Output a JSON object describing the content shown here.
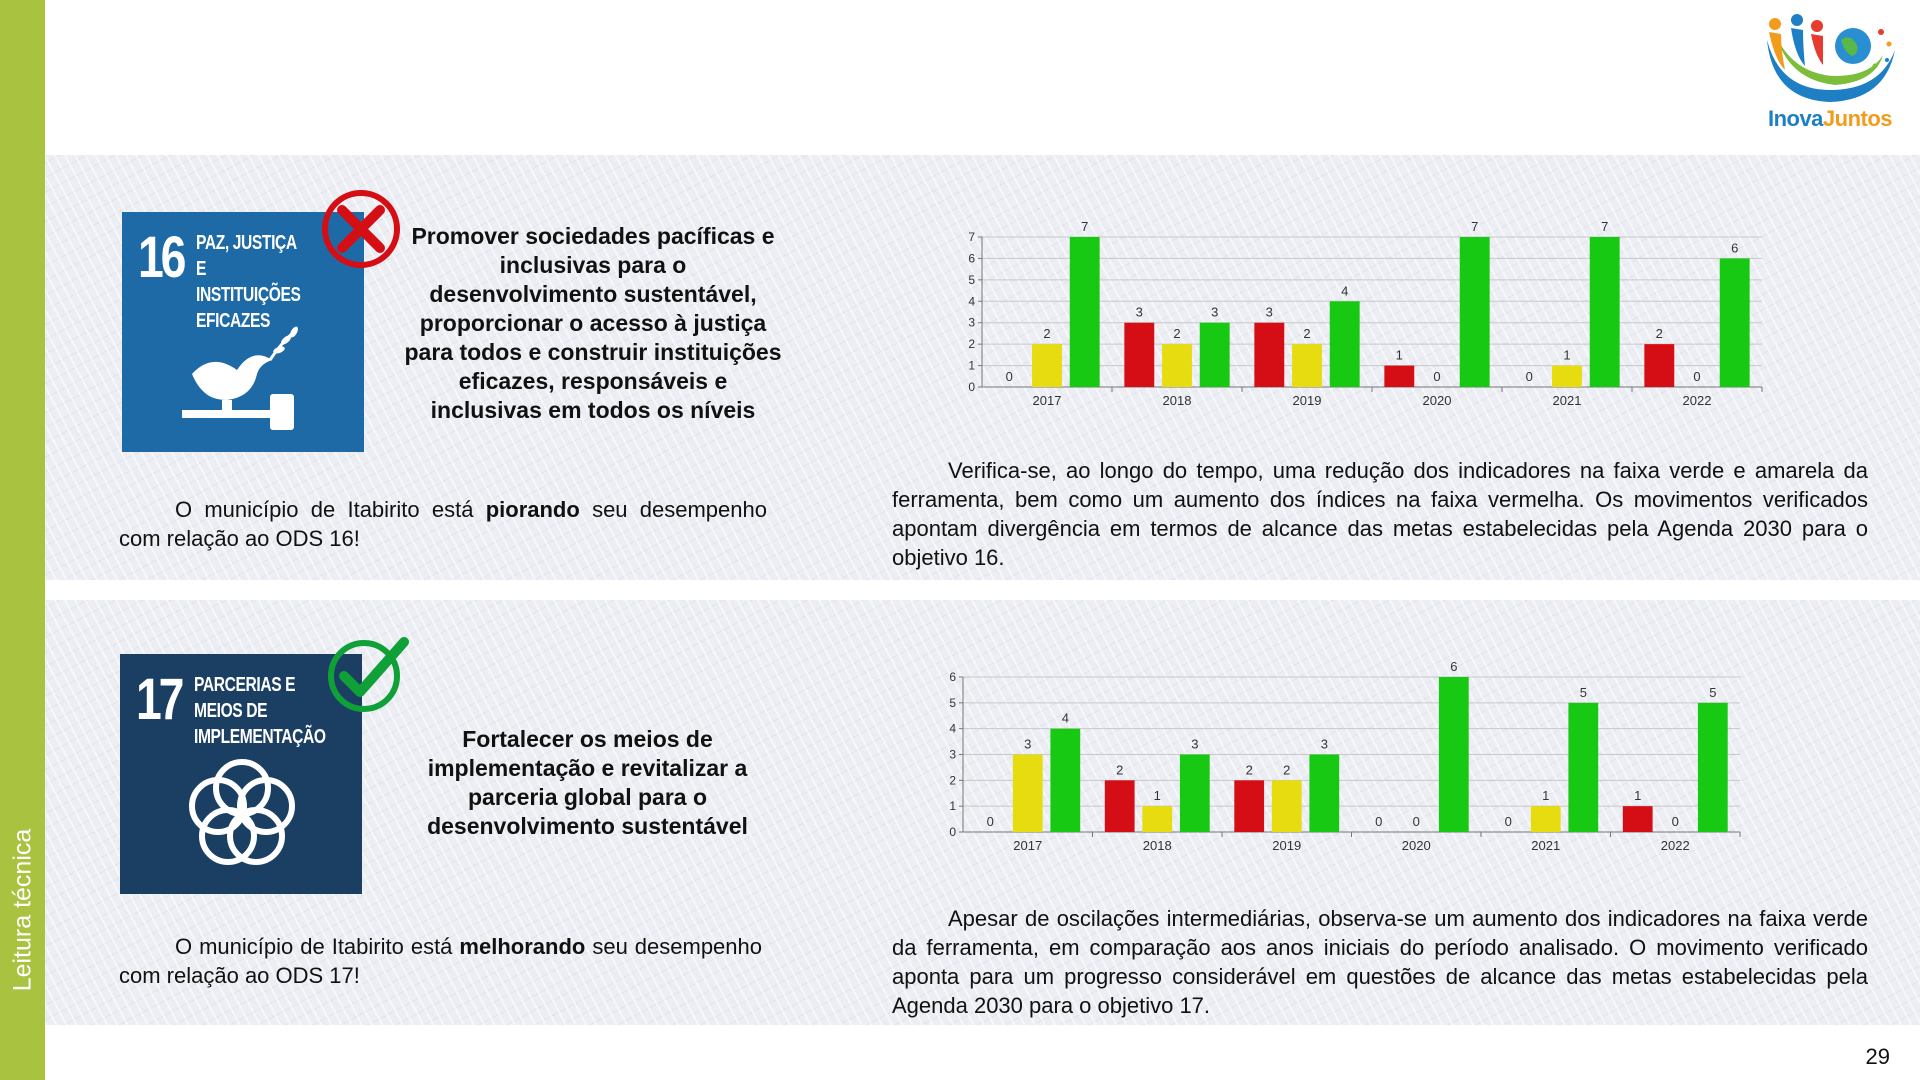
{
  "sidebar": {
    "label": "Leitura técnica",
    "color": "#a9c23f"
  },
  "logo": {
    "text_part1": "Inova",
    "text_part2": "Juntos",
    "icon": "inova-juntos-logo"
  },
  "page_number": "29",
  "colors": {
    "red": "#d40e14",
    "yellow": "#e6dc10",
    "green": "#17c912",
    "sdg16": "#1e6aa6",
    "sdg17": "#1b3f63"
  },
  "sections": [
    {
      "goal_number": "16",
      "goal_title": "PAZ, JUSTIÇA E INSTITUIÇÕES EFICAZES",
      "status_icon": "red-x-icon",
      "goal_description": "Promover sociedades pacíficas e inclusivas para o desenvolvimento sustentável, proporcionar o acesso à justiça para todos e construir instituições eficazes, responsáveis e inclusivas em todos os níveis",
      "status_prefix": "O município de Itabirito está",
      "status_word": "piorando",
      "status_suffix": "seu desempenho com relação ao ODS 16!",
      "analysis": "Verifica-se, ao longo do tempo, uma redução dos indicadores na faixa verde e amarela da ferramenta, bem como um aumento dos índices na faixa vermelha. Os movimentos verificados apontam divergência em termos de alcance das metas estabelecidas pela Agenda 2030 para o objetivo 16."
    },
    {
      "goal_number": "17",
      "goal_title": "PARCERIAS E MEIOS DE IMPLEMENTAÇÃO",
      "status_icon": "green-check-icon",
      "goal_description": "Fortalecer os meios de implementação e revitalizar a parceria global para o desenvolvimento sustentável",
      "status_prefix": "O município de Itabirito está",
      "status_word": "melhorando",
      "status_suffix": "seu desempenho com relação ao ODS 17!",
      "analysis": "Apesar de oscilações intermediárias, observa-se um aumento dos indicadores na faixa verde da ferramenta, em comparação aos anos iniciais do período analisado. O movimento verificado aponta para um progresso considerável em questões de alcance das metas estabelecidas pela Agenda 2030 para o objetivo 17."
    }
  ],
  "chart_data": [
    {
      "type": "bar",
      "categories": [
        "2017",
        "2018",
        "2019",
        "2020",
        "2021",
        "2022"
      ],
      "series": [
        {
          "color": "#d40e14",
          "values": [
            0,
            3,
            3,
            1,
            0,
            2
          ]
        },
        {
          "color": "#e6dc10",
          "values": [
            2,
            2,
            2,
            0,
            1,
            0
          ]
        },
        {
          "color": "#17c912",
          "values": [
            7,
            3,
            4,
            7,
            7,
            6
          ]
        }
      ],
      "ylim": [
        0,
        7
      ],
      "yticks": [
        0,
        1,
        2,
        3,
        4,
        5,
        6,
        7
      ],
      "grid": true,
      "legend": "none"
    },
    {
      "type": "bar",
      "categories": [
        "2017",
        "2018",
        "2019",
        "2020",
        "2021",
        "2022"
      ],
      "series": [
        {
          "color": "#d40e14",
          "values": [
            0,
            2,
            2,
            0,
            0,
            1
          ]
        },
        {
          "color": "#e6dc10",
          "values": [
            3,
            1,
            2,
            0,
            1,
            0
          ]
        },
        {
          "color": "#17c912",
          "values": [
            4,
            3,
            3,
            6,
            5,
            5
          ]
        }
      ],
      "ylim": [
        0,
        6
      ],
      "yticks": [
        0,
        1,
        2,
        3,
        4,
        5,
        6
      ],
      "grid": true,
      "legend": "none"
    }
  ]
}
